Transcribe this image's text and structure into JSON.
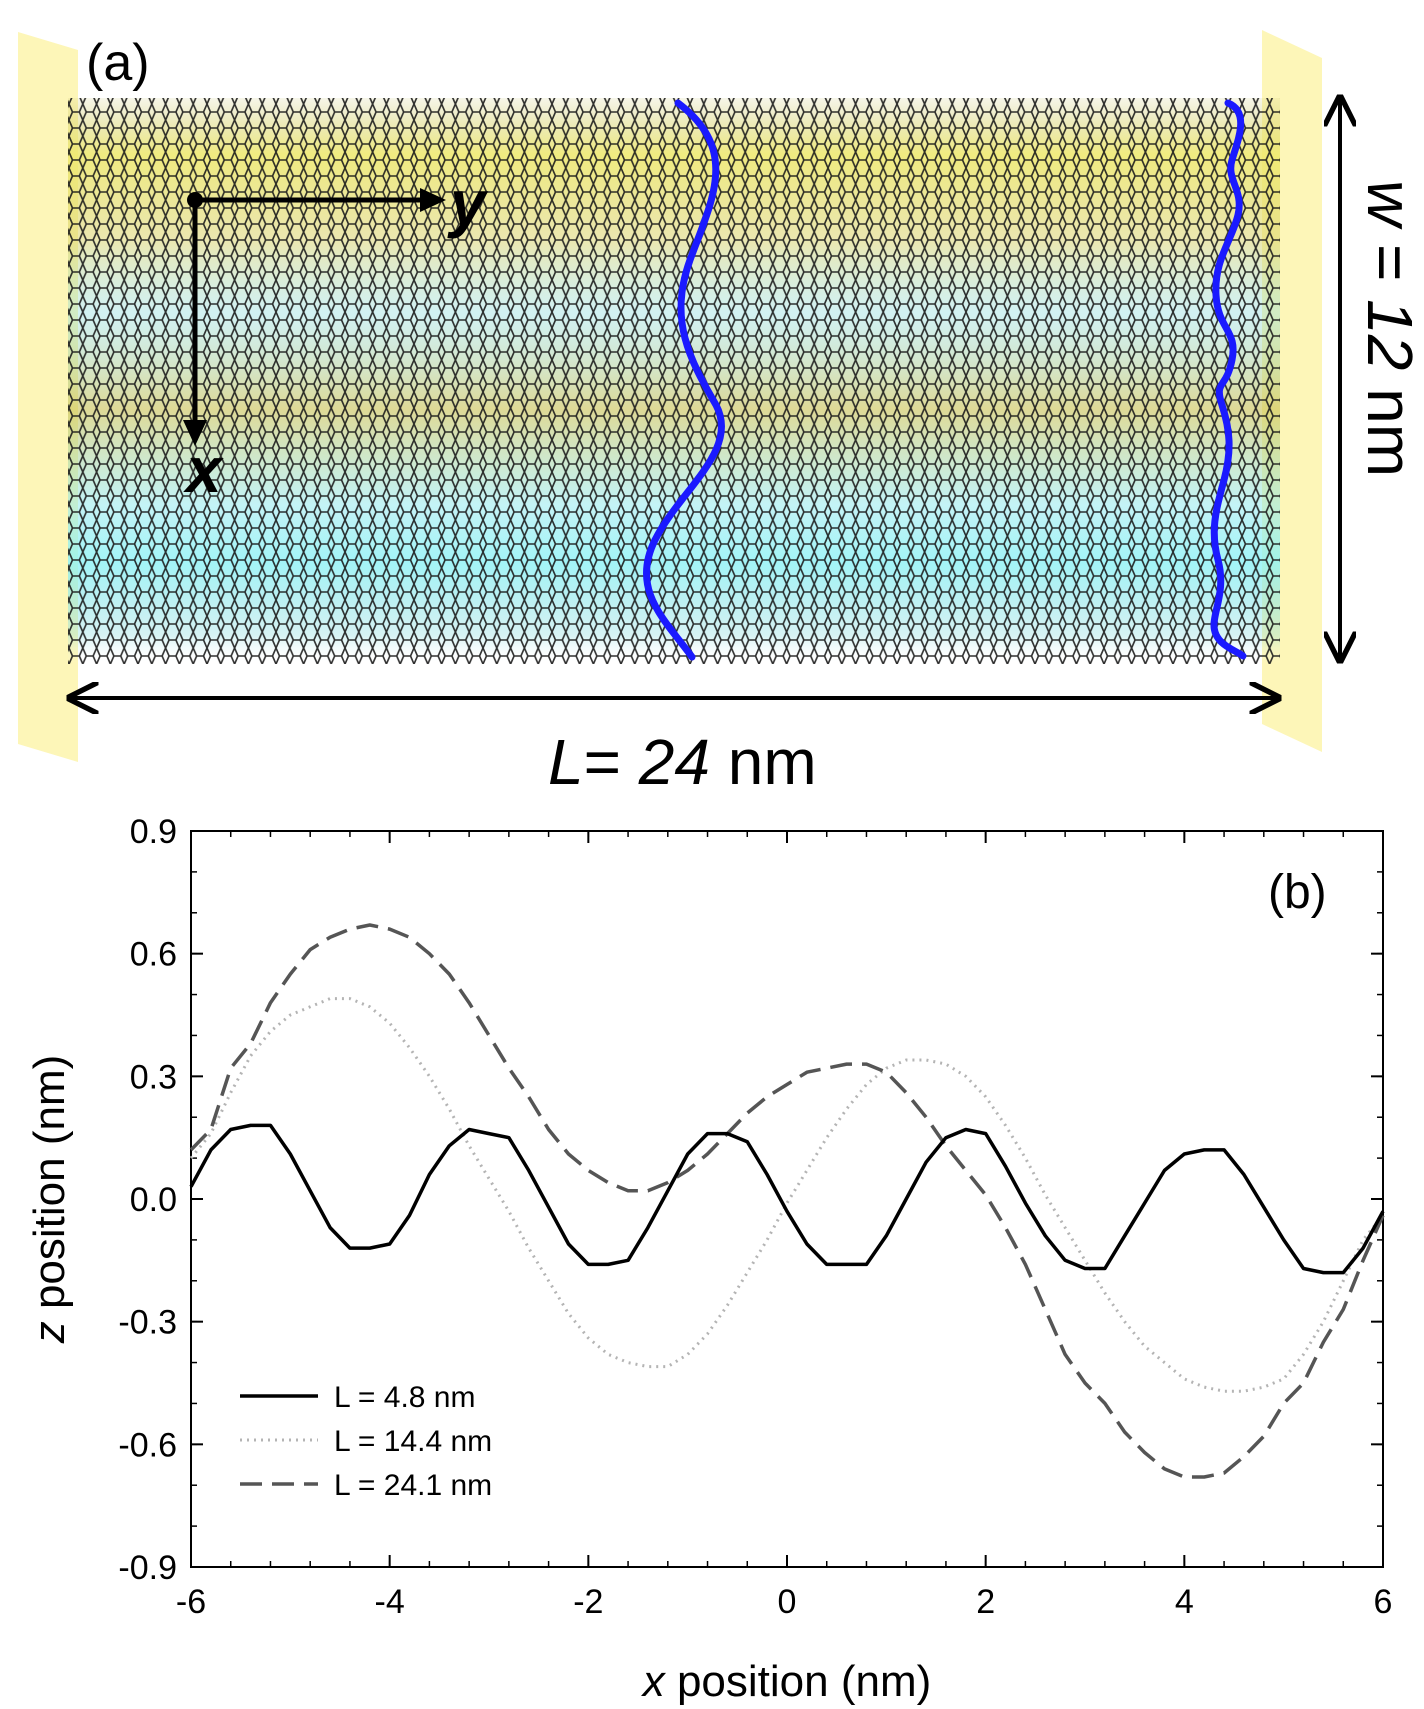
{
  "panel_a": {
    "label": "(a)",
    "axis_y_label": "y",
    "axis_x_label": "x",
    "length_label_var": "L",
    "length_label_eq": "= ",
    "length_label_val": "24",
    "length_label_unit": " nm",
    "width_label_var": "w",
    "width_label_eq": " = ",
    "width_label_val": "12",
    "width_label_unit": " nm",
    "colors": {
      "clamp": "#fdf6b8",
      "lattice": "#1a1a1a",
      "wave": "#1a1aff",
      "yellow_tint": "#e8e07a",
      "cyan_tint": "#7ee0e8"
    }
  },
  "chart_data": {
    "type": "line",
    "panel_label": "(b)",
    "xlabel_var": "x",
    "xlabel_rest": " position (nm)",
    "ylabel_var": "z",
    "ylabel_rest": " position (nm)",
    "xlim": [
      -6,
      6
    ],
    "ylim": [
      -0.9,
      0.9
    ],
    "xticks": [
      -6,
      -4,
      -2,
      0,
      2,
      4,
      6
    ],
    "xtick_labels": [
      "-6",
      "-4",
      "-2",
      "0",
      "2",
      "4",
      "6"
    ],
    "yticks": [
      0.9,
      0.6,
      0.3,
      0.0,
      -0.3,
      -0.6,
      -0.9
    ],
    "ytick_labels": [
      "0.9",
      "0.6",
      "0.3",
      "0.0",
      "-0.3",
      "-0.6",
      "-0.9"
    ],
    "legend_position": "bottom-left",
    "series": [
      {
        "name": "L = 4.8 nm",
        "style": "solid",
        "color": "#000000",
        "x": [
          -6.0,
          -5.8,
          -5.6,
          -5.4,
          -5.2,
          -5.0,
          -4.8,
          -4.6,
          -4.4,
          -4.2,
          -4.0,
          -3.8,
          -3.6,
          -3.4,
          -3.2,
          -3.0,
          -2.8,
          -2.6,
          -2.4,
          -2.2,
          -2.0,
          -1.8,
          -1.6,
          -1.4,
          -1.2,
          -1.0,
          -0.8,
          -0.6,
          -0.4,
          -0.2,
          0.0,
          0.2,
          0.4,
          0.6,
          0.8,
          1.0,
          1.2,
          1.4,
          1.6,
          1.8,
          2.0,
          2.2,
          2.4,
          2.6,
          2.8,
          3.0,
          3.2,
          3.4,
          3.6,
          3.8,
          4.0,
          4.2,
          4.4,
          4.6,
          4.8,
          5.0,
          5.2,
          5.4,
          5.6,
          5.8,
          6.0
        ],
        "y": [
          0.03,
          0.12,
          0.17,
          0.18,
          0.18,
          0.11,
          0.02,
          -0.07,
          -0.12,
          -0.12,
          -0.11,
          -0.04,
          0.06,
          0.13,
          0.17,
          0.16,
          0.15,
          0.07,
          -0.02,
          -0.11,
          -0.16,
          -0.16,
          -0.15,
          -0.07,
          0.02,
          0.11,
          0.16,
          0.16,
          0.14,
          0.06,
          -0.03,
          -0.11,
          -0.16,
          -0.16,
          -0.16,
          -0.09,
          0.0,
          0.09,
          0.15,
          0.17,
          0.16,
          0.08,
          -0.01,
          -0.09,
          -0.15,
          -0.17,
          -0.17,
          -0.09,
          -0.01,
          0.07,
          0.11,
          0.12,
          0.12,
          0.06,
          -0.02,
          -0.1,
          -0.17,
          -0.18,
          -0.18,
          -0.12,
          -0.03
        ]
      },
      {
        "name": "L = 14.4 nm",
        "style": "dotted",
        "color": "#b4b4b4",
        "x": [
          -6.0,
          -5.8,
          -5.6,
          -5.4,
          -5.2,
          -5.0,
          -4.8,
          -4.6,
          -4.4,
          -4.2,
          -4.0,
          -3.8,
          -3.6,
          -3.4,
          -3.2,
          -3.0,
          -2.8,
          -2.6,
          -2.4,
          -2.2,
          -2.0,
          -1.8,
          -1.6,
          -1.4,
          -1.2,
          -1.0,
          -0.8,
          -0.6,
          -0.4,
          -0.2,
          0.0,
          0.2,
          0.4,
          0.6,
          0.8,
          1.0,
          1.2,
          1.4,
          1.6,
          1.8,
          2.0,
          2.2,
          2.4,
          2.6,
          2.8,
          3.0,
          3.2,
          3.4,
          3.6,
          3.8,
          4.0,
          4.2,
          4.4,
          4.6,
          4.8,
          5.0,
          5.2,
          5.4,
          5.6,
          5.8,
          6.0
        ],
        "y": [
          0.1,
          0.16,
          0.26,
          0.35,
          0.41,
          0.45,
          0.47,
          0.49,
          0.49,
          0.47,
          0.43,
          0.37,
          0.3,
          0.22,
          0.13,
          0.05,
          -0.03,
          -0.12,
          -0.2,
          -0.28,
          -0.34,
          -0.38,
          -0.4,
          -0.41,
          -0.41,
          -0.38,
          -0.33,
          -0.26,
          -0.18,
          -0.1,
          -0.01,
          0.07,
          0.15,
          0.22,
          0.28,
          0.32,
          0.34,
          0.34,
          0.33,
          0.3,
          0.25,
          0.18,
          0.1,
          0.01,
          -0.07,
          -0.15,
          -0.23,
          -0.3,
          -0.36,
          -0.4,
          -0.44,
          -0.46,
          -0.47,
          -0.47,
          -0.46,
          -0.44,
          -0.38,
          -0.3,
          -0.2,
          -0.1,
          -0.04
        ]
      },
      {
        "name": "L = 24.1 nm",
        "style": "dashed",
        "color": "#555555",
        "x": [
          -6.0,
          -5.8,
          -5.6,
          -5.4,
          -5.2,
          -5.0,
          -4.8,
          -4.6,
          -4.4,
          -4.2,
          -4.0,
          -3.8,
          -3.6,
          -3.4,
          -3.2,
          -3.0,
          -2.8,
          -2.6,
          -2.4,
          -2.2,
          -2.0,
          -1.8,
          -1.6,
          -1.4,
          -1.2,
          -1.0,
          -0.8,
          -0.6,
          -0.4,
          -0.2,
          0.0,
          0.2,
          0.4,
          0.6,
          0.8,
          1.0,
          1.2,
          1.4,
          1.6,
          1.8,
          2.0,
          2.2,
          2.4,
          2.6,
          2.8,
          3.0,
          3.2,
          3.4,
          3.6,
          3.8,
          4.0,
          4.2,
          4.4,
          4.6,
          4.8,
          5.0,
          5.2,
          5.4,
          5.6,
          5.8,
          6.0
        ],
        "y": [
          0.12,
          0.17,
          0.32,
          0.38,
          0.48,
          0.55,
          0.61,
          0.64,
          0.66,
          0.67,
          0.66,
          0.64,
          0.6,
          0.55,
          0.48,
          0.4,
          0.32,
          0.25,
          0.17,
          0.11,
          0.07,
          0.04,
          0.02,
          0.02,
          0.04,
          0.07,
          0.11,
          0.16,
          0.21,
          0.25,
          0.28,
          0.31,
          0.32,
          0.33,
          0.33,
          0.31,
          0.26,
          0.2,
          0.13,
          0.07,
          0.01,
          -0.07,
          -0.16,
          -0.27,
          -0.38,
          -0.45,
          -0.5,
          -0.57,
          -0.62,
          -0.66,
          -0.68,
          -0.68,
          -0.67,
          -0.63,
          -0.58,
          -0.5,
          -0.45,
          -0.35,
          -0.27,
          -0.15,
          -0.04
        ]
      }
    ]
  }
}
